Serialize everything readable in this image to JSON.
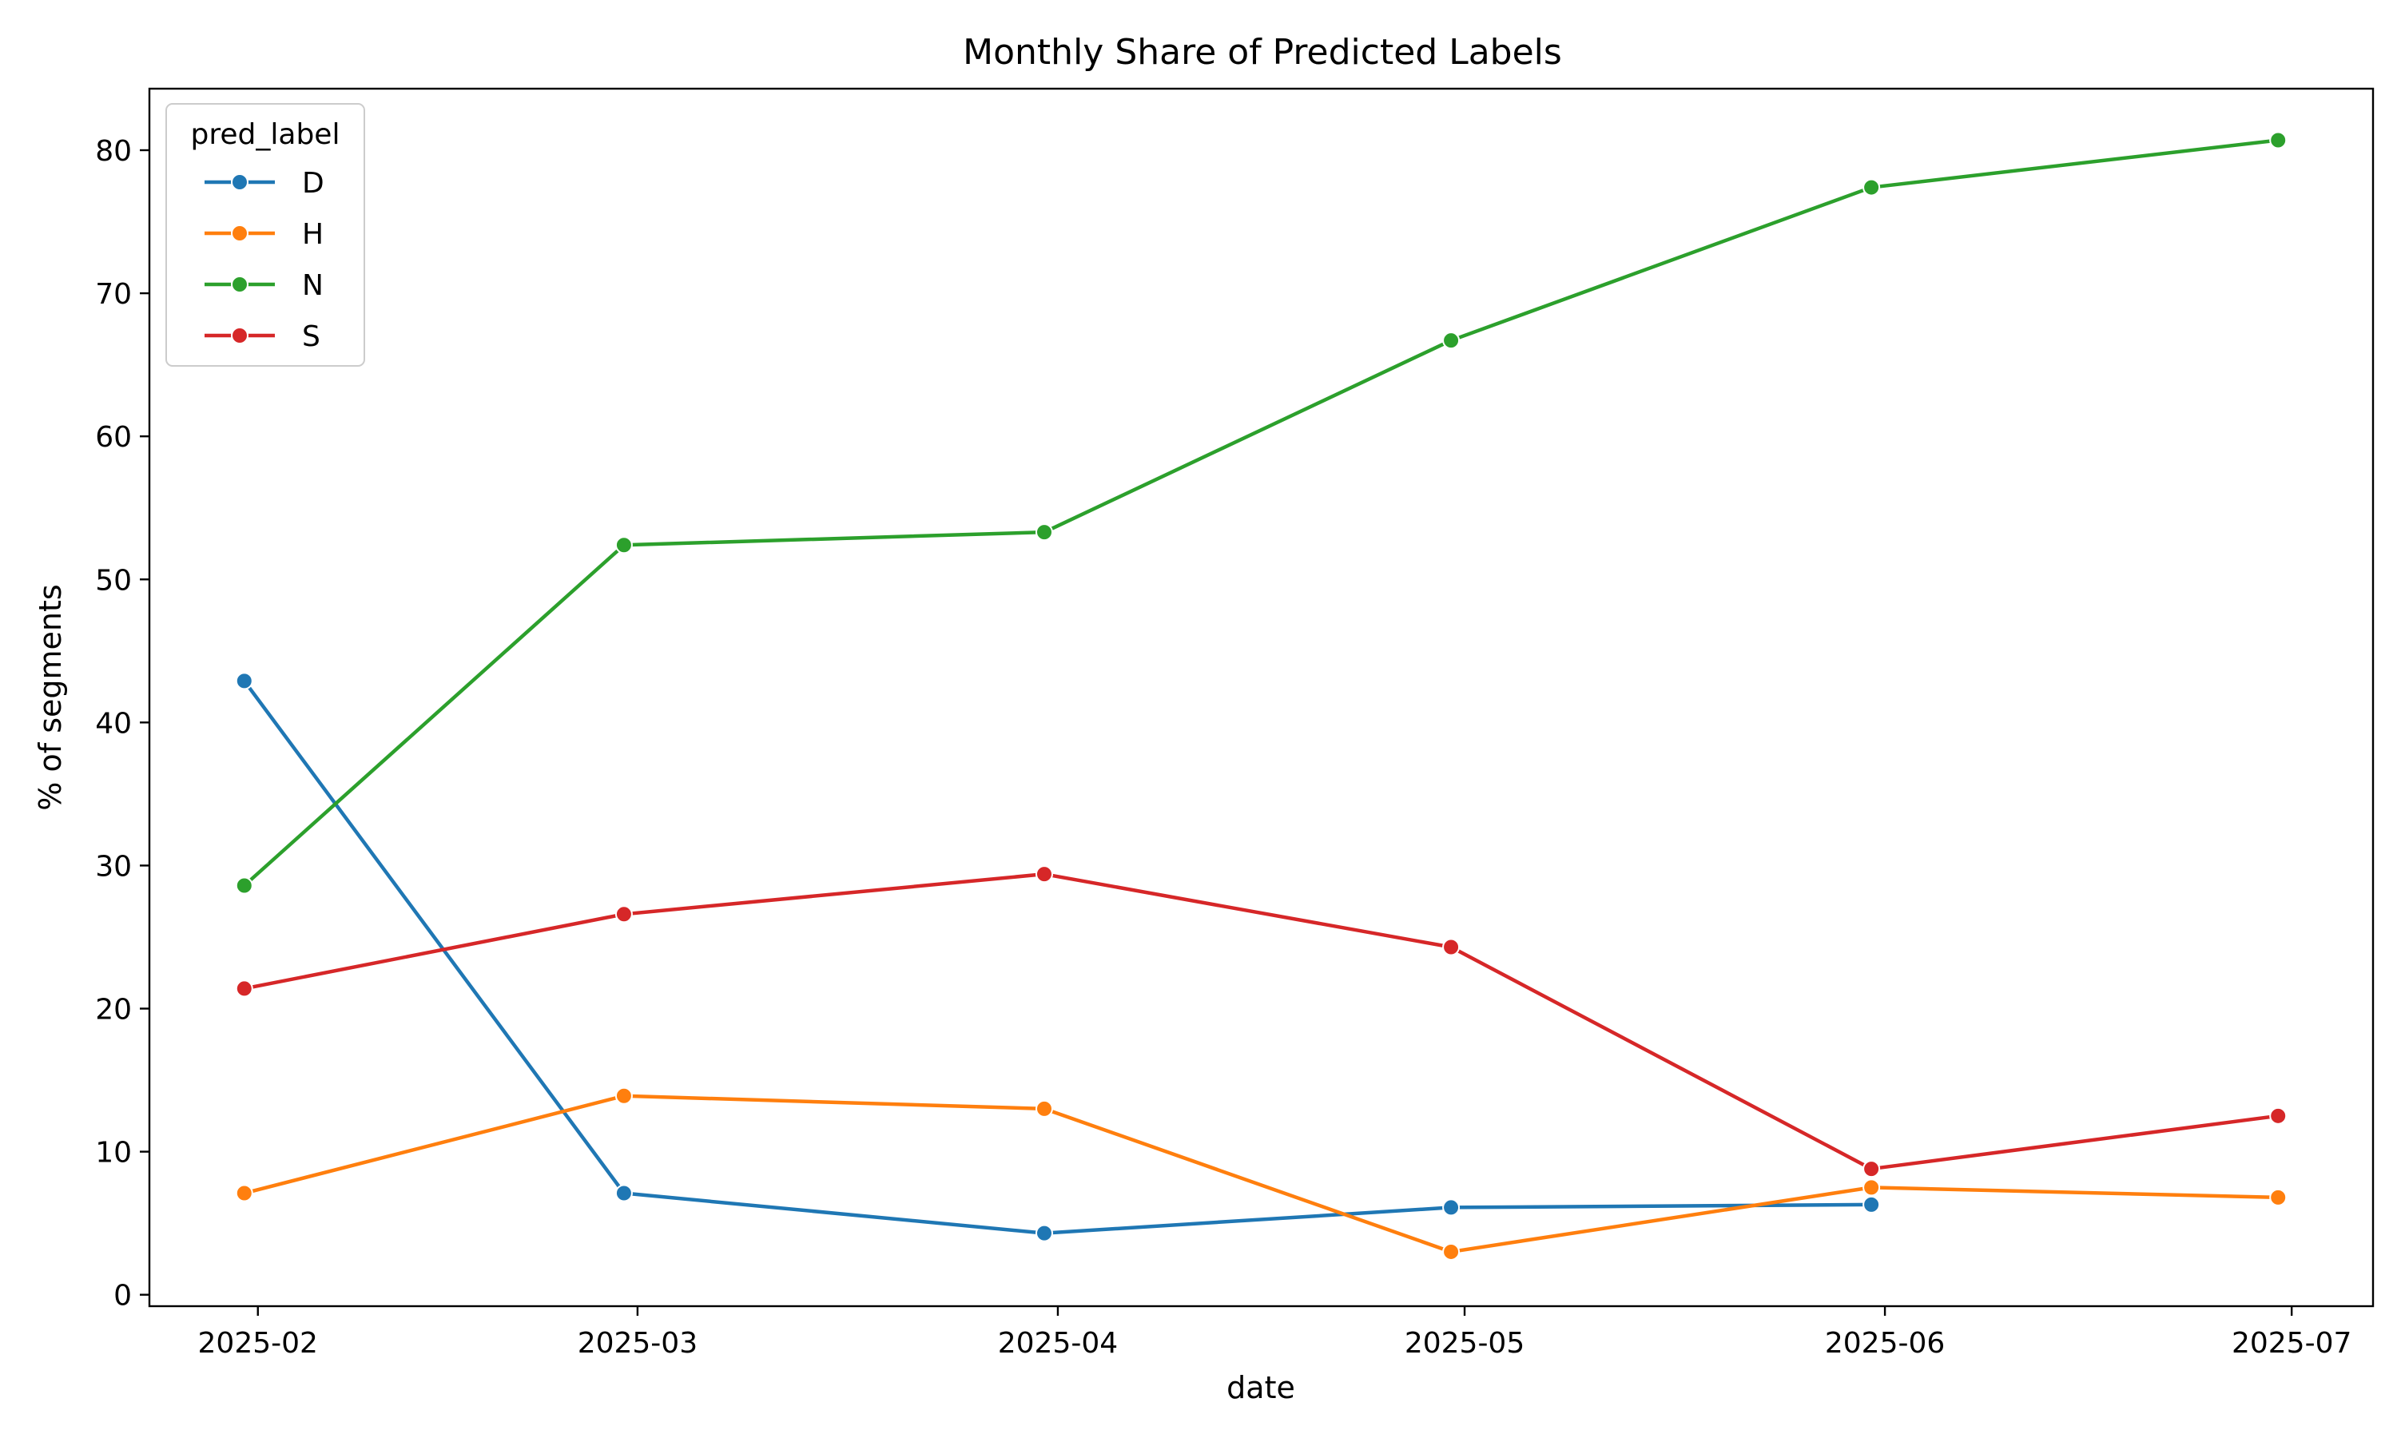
{
  "chart_data": {
    "type": "line",
    "title": "Monthly Share of Predicted Labels",
    "xlabel": "date",
    "ylabel": "% of segments",
    "x": [
      "2025-01-31",
      "2025-02-28",
      "2025-03-31",
      "2025-04-30",
      "2025-05-31",
      "2025-06-30"
    ],
    "xticks": [
      {
        "date": "2025-02-01",
        "label": "2025-02"
      },
      {
        "date": "2025-03-01",
        "label": "2025-03"
      },
      {
        "date": "2025-04-01",
        "label": "2025-04"
      },
      {
        "date": "2025-05-01",
        "label": "2025-05"
      },
      {
        "date": "2025-06-01",
        "label": "2025-06"
      },
      {
        "date": "2025-07-01",
        "label": "2025-07"
      }
    ],
    "yticks": [
      0,
      10,
      20,
      30,
      40,
      50,
      60,
      70,
      80
    ],
    "ylim": [
      -0.8,
      84.3
    ],
    "xlim": [
      "2025-01-24",
      "2025-07-07"
    ],
    "grid": false,
    "legend": {
      "title": "pred_label",
      "placement": "top-left"
    },
    "series": [
      {
        "name": "D",
        "color": "#1f77b4",
        "values": [
          42.9,
          7.1,
          4.3,
          6.1,
          6.3,
          null
        ]
      },
      {
        "name": "H",
        "color": "#ff7f0e",
        "values": [
          7.1,
          13.9,
          13.0,
          3.0,
          7.5,
          6.8
        ]
      },
      {
        "name": "N",
        "color": "#2ca02c",
        "values": [
          28.6,
          52.4,
          53.3,
          66.7,
          77.4,
          80.7
        ]
      },
      {
        "name": "S",
        "color": "#d62728",
        "values": [
          21.4,
          26.6,
          29.4,
          24.3,
          8.8,
          12.5
        ]
      }
    ]
  }
}
